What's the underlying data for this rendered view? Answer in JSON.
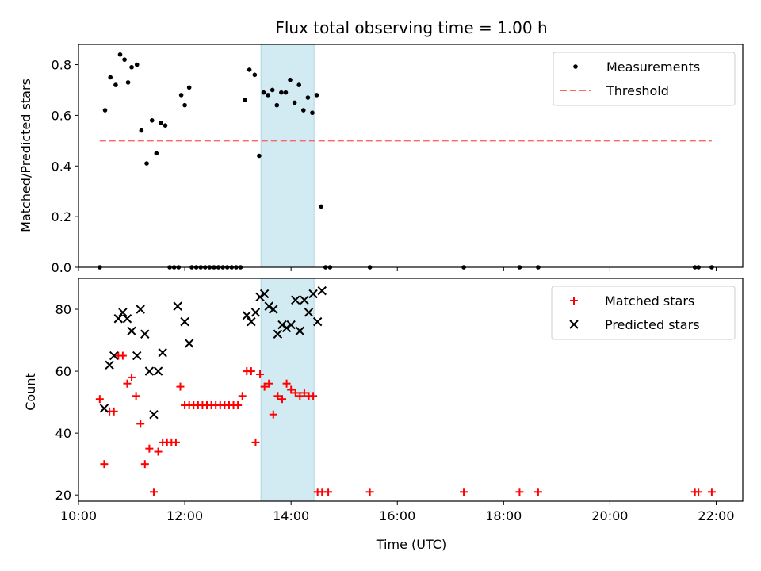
{
  "colors": {
    "measurement": "#000000",
    "threshold": "#ff6666",
    "matched": "#ff0000",
    "predicted": "#000000",
    "band": "#add8e6"
  },
  "chart_data": [
    {
      "type": "scatter",
      "title": "Flux total observing time = 1.00 h",
      "ylabel": "Matched/Predicted stars",
      "xlabel": "",
      "xlim": [
        "10:00",
        "22:30"
      ],
      "ylim": [
        0,
        0.88
      ],
      "x_ticks": [
        "10:00",
        "12:00",
        "14:00",
        "16:00",
        "18:00",
        "20:00",
        "22:00"
      ],
      "y_ticks": [
        "0.0",
        "0.2",
        "0.4",
        "0.6",
        "0.8"
      ],
      "highlight_band": [
        "13:26",
        "14:26"
      ],
      "legend_position": "top-right",
      "series": [
        {
          "name": "Measurements",
          "marker": "dot",
          "points": [
            [
              "10:24",
              0
            ],
            [
              "10:30",
              0.62
            ],
            [
              "10:36",
              0.75
            ],
            [
              "10:42",
              0.72
            ],
            [
              "10:47",
              0.84
            ],
            [
              "10:52",
              0.82
            ],
            [
              "10:56",
              0.73
            ],
            [
              "11:00",
              0.79
            ],
            [
              "11:06",
              0.8
            ],
            [
              "11:11",
              0.54
            ],
            [
              "11:17",
              0.41
            ],
            [
              "11:23",
              0.58
            ],
            [
              "11:28",
              0.45
            ],
            [
              "11:33",
              0.57
            ],
            [
              "11:38",
              0.56
            ],
            [
              "11:43",
              0
            ],
            [
              "11:48",
              0
            ],
            [
              "11:53",
              0
            ],
            [
              "11:56",
              0.68
            ],
            [
              "12:00",
              0.64
            ],
            [
              "12:05",
              0.71
            ],
            [
              "12:08",
              0
            ],
            [
              "12:13",
              0
            ],
            [
              "12:18",
              0
            ],
            [
              "12:23",
              0
            ],
            [
              "12:28",
              0
            ],
            [
              "12:33",
              0
            ],
            [
              "12:38",
              0
            ],
            [
              "12:43",
              0
            ],
            [
              "12:48",
              0
            ],
            [
              "12:53",
              0
            ],
            [
              "12:58",
              0
            ],
            [
              "13:03",
              0
            ],
            [
              "13:08",
              0.66
            ],
            [
              "13:13",
              0.78
            ],
            [
              "13:19",
              0.76
            ],
            [
              "13:24",
              0.44
            ],
            [
              "13:29",
              0.69
            ],
            [
              "13:34",
              0.68
            ],
            [
              "13:39",
              0.7
            ],
            [
              "13:44",
              0.64
            ],
            [
              "13:49",
              0.69
            ],
            [
              "13:54",
              0.69
            ],
            [
              "13:59",
              0.74
            ],
            [
              "14:04",
              0.65
            ],
            [
              "14:09",
              0.72
            ],
            [
              "14:14",
              0.62
            ],
            [
              "14:19",
              0.67
            ],
            [
              "14:24",
              0.61
            ],
            [
              "14:29",
              0.68
            ],
            [
              "14:34",
              0.24
            ],
            [
              "14:39",
              0
            ],
            [
              "14:44",
              0
            ],
            [
              "15:29",
              0
            ],
            [
              "17:15",
              0
            ],
            [
              "18:18",
              0
            ],
            [
              "18:39",
              0
            ],
            [
              "21:36",
              0
            ],
            [
              "21:40",
              0
            ],
            [
              "21:55",
              0
            ]
          ]
        },
        {
          "name": "Threshold",
          "style": "dashed",
          "points": [
            [
              "10:24",
              0.5
            ],
            [
              "21:55",
              0.5
            ]
          ]
        }
      ]
    },
    {
      "type": "scatter",
      "title": "",
      "ylabel": "Count",
      "xlabel": "Time (UTC)",
      "xlim": [
        "10:00",
        "22:30"
      ],
      "ylim": [
        18,
        90
      ],
      "x_ticks": [
        "10:00",
        "12:00",
        "14:00",
        "16:00",
        "18:00",
        "20:00",
        "22:00"
      ],
      "y_ticks": [
        "20",
        "40",
        "60",
        "80"
      ],
      "highlight_band": [
        "13:26",
        "14:26"
      ],
      "legend_position": "top-right",
      "series": [
        {
          "name": "Matched stars",
          "marker": "plus",
          "points": [
            [
              "10:24",
              51
            ],
            [
              "10:29",
              30
            ],
            [
              "10:35",
              47
            ],
            [
              "10:40",
              47
            ],
            [
              "10:45",
              65
            ],
            [
              "10:50",
              65
            ],
            [
              "10:55",
              56
            ],
            [
              "11:00",
              58
            ],
            [
              "11:05",
              52
            ],
            [
              "11:10",
              43
            ],
            [
              "11:15",
              30
            ],
            [
              "11:20",
              35
            ],
            [
              "11:25",
              21
            ],
            [
              "11:30",
              34
            ],
            [
              "11:35",
              37
            ],
            [
              "11:40",
              37
            ],
            [
              "11:45",
              37
            ],
            [
              "11:50",
              37
            ],
            [
              "11:55",
              55
            ],
            [
              "12:00",
              49
            ],
            [
              "12:05",
              49
            ],
            [
              "12:10",
              49
            ],
            [
              "12:15",
              49
            ],
            [
              "12:20",
              49
            ],
            [
              "12:25",
              49
            ],
            [
              "12:30",
              49
            ],
            [
              "12:35",
              49
            ],
            [
              "12:40",
              49
            ],
            [
              "12:45",
              49
            ],
            [
              "12:50",
              49
            ],
            [
              "12:55",
              49
            ],
            [
              "13:00",
              49
            ],
            [
              "13:05",
              52
            ],
            [
              "13:10",
              60
            ],
            [
              "13:15",
              60
            ],
            [
              "13:20",
              37
            ],
            [
              "13:25",
              59
            ],
            [
              "13:30",
              55
            ],
            [
              "13:35",
              56
            ],
            [
              "13:40",
              46
            ],
            [
              "13:45",
              52
            ],
            [
              "13:50",
              51
            ],
            [
              "13:55",
              56
            ],
            [
              "14:00",
              54
            ],
            [
              "14:05",
              53
            ],
            [
              "14:10",
              52
            ],
            [
              "14:15",
              53
            ],
            [
              "14:20",
              52
            ],
            [
              "14:25",
              52
            ],
            [
              "14:30",
              21
            ],
            [
              "14:35",
              21
            ],
            [
              "14:42",
              21
            ],
            [
              "15:29",
              21
            ],
            [
              "17:15",
              21
            ],
            [
              "18:18",
              21
            ],
            [
              "18:39",
              21
            ],
            [
              "21:36",
              21
            ],
            [
              "21:40",
              21
            ],
            [
              "21:55",
              21
            ]
          ]
        },
        {
          "name": "Predicted stars",
          "marker": "x",
          "points": [
            [
              "10:29",
              48
            ],
            [
              "10:35",
              62
            ],
            [
              "10:40",
              65
            ],
            [
              "10:45",
              77
            ],
            [
              "10:50",
              79
            ],
            [
              "10:55",
              77
            ],
            [
              "11:00",
              73
            ],
            [
              "11:06",
              65
            ],
            [
              "11:10",
              80
            ],
            [
              "11:15",
              72
            ],
            [
              "11:20",
              60
            ],
            [
              "11:25",
              46
            ],
            [
              "11:30",
              60
            ],
            [
              "11:35",
              66
            ],
            [
              "11:52",
              81
            ],
            [
              "12:00",
              76
            ],
            [
              "12:05",
              69
            ],
            [
              "13:10",
              78
            ],
            [
              "13:15",
              76
            ],
            [
              "13:20",
              79
            ],
            [
              "13:25",
              84
            ],
            [
              "13:30",
              85
            ],
            [
              "13:35",
              81
            ],
            [
              "13:40",
              80
            ],
            [
              "13:45",
              72
            ],
            [
              "13:50",
              75
            ],
            [
              "13:55",
              74
            ],
            [
              "14:00",
              75
            ],
            [
              "14:05",
              83
            ],
            [
              "14:10",
              73
            ],
            [
              "14:15",
              83
            ],
            [
              "14:20",
              79
            ],
            [
              "14:25",
              85
            ],
            [
              "14:30",
              76
            ],
            [
              "14:35",
              86
            ]
          ]
        }
      ]
    }
  ]
}
